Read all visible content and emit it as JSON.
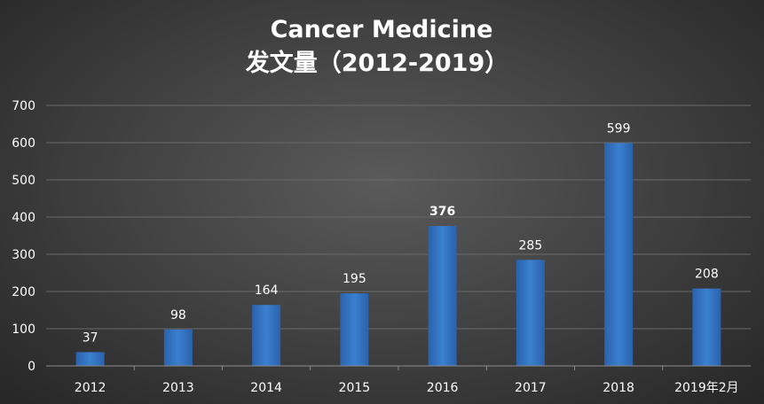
{
  "chart_data": {
    "type": "bar",
    "title": "Cancer Medicine",
    "subtitle": "发文量（2012-2019）",
    "categories": [
      "2012",
      "2013",
      "2014",
      "2015",
      "2016",
      "2017",
      "2018",
      "2019年2月"
    ],
    "values": [
      37,
      98,
      164,
      195,
      376,
      285,
      599,
      208
    ],
    "data_labels": [
      "37",
      "98",
      "164",
      "195",
      "376",
      "285",
      "599",
      "208"
    ],
    "bold_label_index": 4,
    "ylim": [
      0,
      700
    ],
    "yticks": [
      0,
      100,
      200,
      300,
      400,
      500,
      600,
      700
    ],
    "ytick_labels": [
      "0",
      "100",
      "200",
      "300",
      "400",
      "500",
      "600",
      "700"
    ],
    "grid": true,
    "bar_color": "#3b7fd0",
    "bar_color_dark": "#2a62ab",
    "xlabel": "",
    "ylabel": ""
  }
}
